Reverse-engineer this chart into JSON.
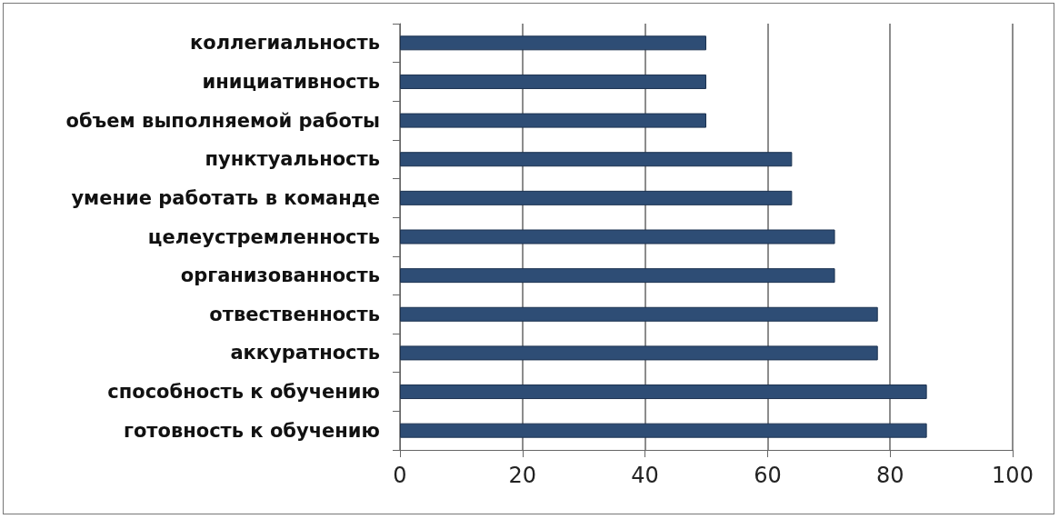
{
  "chart_data": {
    "type": "bar",
    "orientation": "horizontal",
    "categories": [
      "коллегиальность",
      "инициативность",
      "объем выполняемой работы",
      "пунктуальность",
      "умение работать в команде",
      "целеустремленность",
      "организованность",
      "отвественность",
      "аккуратность",
      "способность к обучению",
      "готовность к обучению"
    ],
    "values": [
      50,
      50,
      50,
      64,
      64,
      71,
      71,
      78,
      78,
      86,
      86
    ],
    "color": "#2e4d75",
    "xlim": [
      0,
      100
    ],
    "xticks": [
      0,
      20,
      40,
      60,
      80,
      100
    ],
    "grid": "x"
  }
}
